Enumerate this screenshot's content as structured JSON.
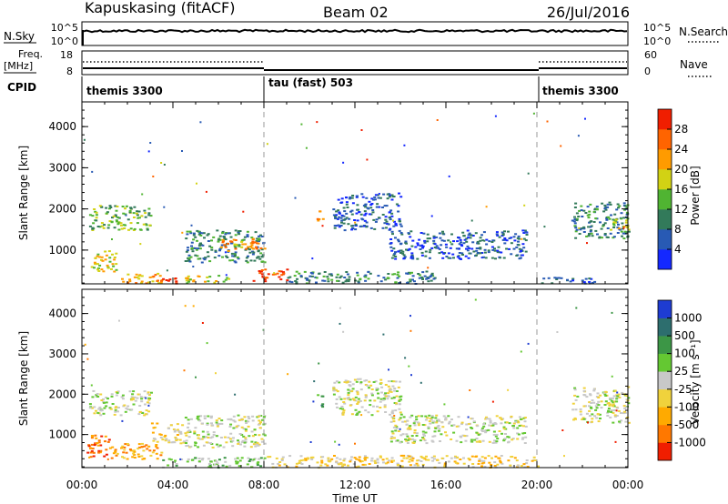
{
  "header": {
    "station": "Kapuskasing (fitACF)",
    "beam": "Beam 02",
    "date": "26/Jul/2016"
  },
  "nsky_panel": {
    "left_label": "N.Sky",
    "left_ticks": [
      "10^5",
      "10^0"
    ],
    "right_label": "N.Search",
    "right_ticks": [
      "10^5",
      "10^0"
    ]
  },
  "freq_panel": {
    "left_label_line1": "Freq.",
    "left_label_line2": "[MHz]",
    "left_ticks": [
      "18",
      "8"
    ],
    "right_label": "Nave",
    "right_ticks": [
      "60",
      "0"
    ]
  },
  "cpid": {
    "label": "CPID",
    "segments": [
      {
        "name": "themis 3300",
        "start_hour": 0
      },
      {
        "name": "tau (fast) 503",
        "start_hour": 8
      },
      {
        "name": "themis 3300",
        "start_hour": 20
      }
    ]
  },
  "axes": {
    "x_ticks": [
      "00:00",
      "04:00",
      "08:00",
      "12:00",
      "16:00",
      "20:00",
      "00:00"
    ],
    "x_label": "Time UT",
    "y_label": "Slant Range [km]",
    "y_ticks": [
      "1000",
      "2000",
      "3000",
      "4000"
    ]
  },
  "power_colorbar": {
    "label": "Power [dB]",
    "ticks": [
      "4",
      "8",
      "12",
      "16",
      "20",
      "24",
      "28"
    ],
    "colors": [
      "#1428ff",
      "#285ab4",
      "#327a5a",
      "#50b432",
      "#d2d214",
      "#ff9b00",
      "#ff6400",
      "#f01e00"
    ]
  },
  "velocity_colorbar": {
    "label": "Velocity [m s⁻¹]",
    "ticks": [
      "1000",
      "500",
      "100",
      "25",
      "-25",
      "-100",
      "-500",
      "-1000"
    ],
    "colors": [
      "#1e3cd2",
      "#2d6e6e",
      "#3c9646",
      "#64c832",
      "#c8c8c8",
      "#f0d23c",
      "#ffaa00",
      "#ff7800",
      "#f01e00"
    ]
  },
  "chart_data": [
    {
      "type": "heatmap",
      "title": "Power",
      "xlabel": "Time UT",
      "ylabel": "Slant Range [km]",
      "xlim_hours": [
        0,
        24
      ],
      "ylim_km": [
        180,
        4600
      ],
      "colorbar_label": "Power [dB]",
      "colorbar_range": [
        0,
        32
      ],
      "regions": [
        {
          "t0": 0.3,
          "t1": 3.0,
          "r0": 1500,
          "r1": 2100,
          "level": 3
        },
        {
          "t0": 0.3,
          "t1": 1.5,
          "r0": 500,
          "r1": 1000,
          "level": 4
        },
        {
          "t0": 1.5,
          "t1": 3.5,
          "r0": 200,
          "r1": 450,
          "level": 5
        },
        {
          "t0": 3.5,
          "t1": 4.5,
          "r0": 200,
          "r1": 350,
          "level": 7
        },
        {
          "t0": 4.5,
          "t1": 6.5,
          "r0": 200,
          "r1": 400,
          "level": 4
        },
        {
          "t0": 4.5,
          "t1": 8.0,
          "r0": 700,
          "r1": 1500,
          "level": 2
        },
        {
          "t0": 6.0,
          "t1": 8.0,
          "r0": 1000,
          "r1": 1300,
          "level": 5
        },
        {
          "t0": 7.5,
          "t1": 9.0,
          "r0": 250,
          "r1": 550,
          "level": 7
        },
        {
          "t0": 10.3,
          "t1": 10.6,
          "r0": 1700,
          "r1": 2000,
          "level": 5
        },
        {
          "t0": 11.0,
          "t1": 14.0,
          "r0": 1500,
          "r1": 2400,
          "level": 1
        },
        {
          "t0": 13.5,
          "t1": 19.5,
          "r0": 800,
          "r1": 1500,
          "level": 1
        },
        {
          "t0": 9.0,
          "t1": 15.5,
          "r0": 200,
          "r1": 500,
          "level": 2
        },
        {
          "t0": 20.0,
          "t1": 22.5,
          "r0": 200,
          "r1": 350,
          "level": 1
        },
        {
          "t0": 21.5,
          "t1": 24.0,
          "r0": 1300,
          "r1": 2200,
          "level": 2
        },
        {
          "t0": 23.2,
          "t1": 24.0,
          "r0": 1500,
          "r1": 1800,
          "level": 4
        }
      ]
    },
    {
      "type": "heatmap",
      "title": "Velocity",
      "xlabel": "Time UT",
      "ylabel": "Slant Range [km]",
      "xlim_hours": [
        0,
        24
      ],
      "ylim_km": [
        180,
        4600
      ],
      "colorbar_label": "Velocity [m s⁻¹]",
      "colorbar_range": [
        -1000,
        1000
      ],
      "regions": [
        {
          "t0": 0.3,
          "t1": 3.0,
          "r0": 1500,
          "r1": 2100,
          "level": 4
        },
        {
          "t0": 0.2,
          "t1": 1.2,
          "r0": 400,
          "r1": 1000,
          "level": 7
        },
        {
          "t0": 1.2,
          "t1": 3.5,
          "r0": 400,
          "r1": 800,
          "level": 6
        },
        {
          "t0": 3.0,
          "t1": 4.5,
          "r0": 800,
          "r1": 1300,
          "level": 5
        },
        {
          "t0": 3.5,
          "t1": 8.0,
          "r0": 200,
          "r1": 450,
          "level": 3
        },
        {
          "t0": 4.5,
          "t1": 8.0,
          "r0": 700,
          "r1": 1500,
          "level": 4
        },
        {
          "t0": 10.3,
          "t1": 10.6,
          "r0": 1700,
          "r1": 2000,
          "level": 2
        },
        {
          "t0": 11.0,
          "t1": 14.0,
          "r0": 1500,
          "r1": 2400,
          "level": 4
        },
        {
          "t0": 13.5,
          "t1": 19.5,
          "r0": 800,
          "r1": 1500,
          "level": 4
        },
        {
          "t0": 8.0,
          "t1": 20.0,
          "r0": 200,
          "r1": 500,
          "level": 5
        },
        {
          "t0": 21.5,
          "t1": 24.0,
          "r0": 1300,
          "r1": 2200,
          "level": 4
        }
      ]
    }
  ]
}
